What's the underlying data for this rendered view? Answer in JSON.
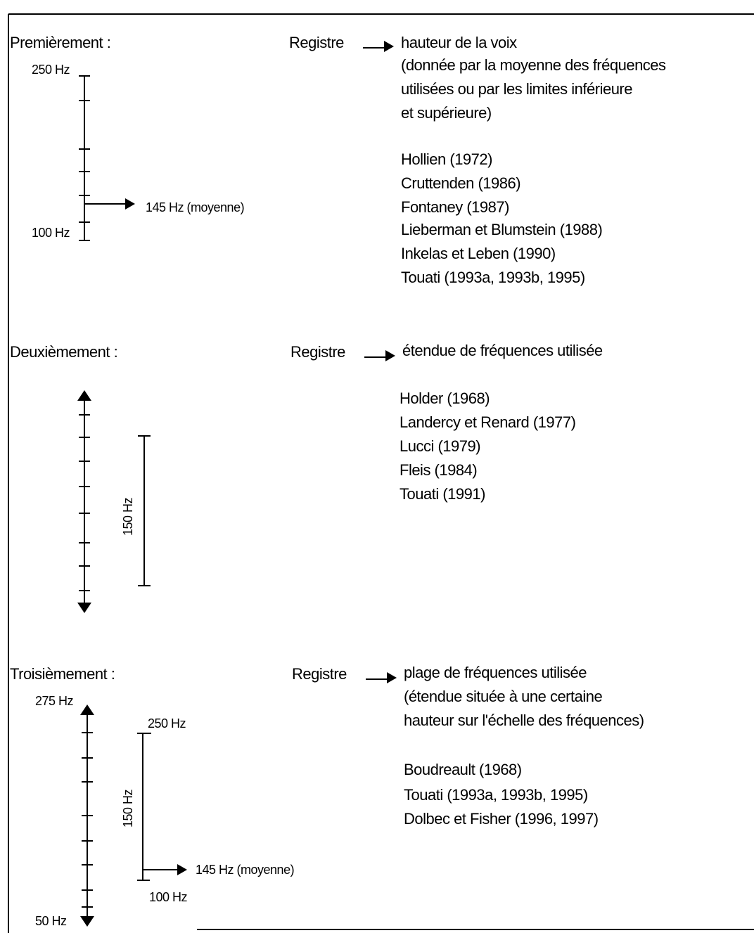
{
  "sections": [
    {
      "heading": "Premièrement :",
      "register": "Registre",
      "definition": [
        "hauteur de la voix",
        "(donnée par la moyenne des fréquences",
        "utilisées ou par les limites inférieure",
        "et supérieure)"
      ],
      "references": [
        "Hollien (1972)",
        "Cruttenden (1986)",
        "Fontaney (1987)",
        "Lieberman et Blumstein (1988)",
        "Inkelas et Leben (1990)",
        "Touati (1993a, 1993b, 1995)"
      ],
      "scale": {
        "top": "250 Hz",
        "bottom": "100 Hz",
        "mean": "145 Hz (moyenne)"
      }
    },
    {
      "heading": "Deuxièmement :",
      "register": "Registre",
      "definition": [
        "étendue de fréquences utilisée"
      ],
      "references": [
        "Holder (1968)",
        "Landercy et Renard (1977)",
        "Lucci (1979)",
        "Fleis (1984)",
        "Touati (1991)"
      ],
      "scale": {
        "range": "150 Hz"
      }
    },
    {
      "heading": "Troisièmement :",
      "register": "Registre",
      "definition": [
        "plage de fréquences utilisée",
        "(étendue située à une certaine",
        "hauteur sur l'échelle des fréquences)"
      ],
      "references": [
        "Boudreault (1968)",
        "Touati (1993a, 1993b, 1995)",
        "Dolbec et Fisher (1996, 1997)"
      ],
      "scale": {
        "top": "275 Hz",
        "bottom": "50 Hz",
        "range_top": "250 Hz",
        "range_bottom": "100 Hz",
        "range": "150 Hz",
        "mean": "145 Hz (moyenne)"
      }
    }
  ]
}
